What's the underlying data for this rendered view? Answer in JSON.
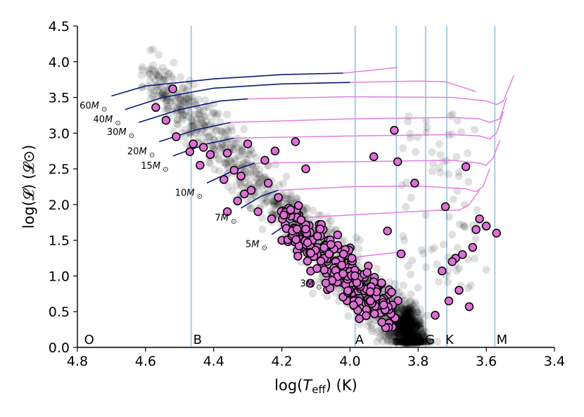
{
  "chart_data": {
    "type": "scatter",
    "title": "",
    "xlabel": "log(T_eff) (K)",
    "xlabel_parts": {
      "pre": "log(",
      "var": "T",
      "sub": "eff",
      "post": ") (K)"
    },
    "ylabel": "log(𝓛) (𝓛⊙)",
    "xlim": [
      4.8,
      3.4
    ],
    "ylim": [
      0.0,
      4.5
    ],
    "x_ticks": [
      4.8,
      4.6,
      4.4,
      4.2,
      4.0,
      3.8,
      3.6,
      3.4
    ],
    "x_tick_labels": [
      "4.8",
      "4.6",
      "4.4",
      "4.2",
      "4.0",
      "3.8",
      "3.6",
      "3.4"
    ],
    "y_ticks": [
      0.0,
      0.5,
      1.0,
      1.5,
      2.0,
      2.5,
      3.0,
      3.5,
      4.0,
      4.5
    ],
    "y_tick_labels": [
      "0.0",
      "0.5",
      "1.0",
      "1.5",
      "2.0",
      "2.5",
      "3.0",
      "3.5",
      "4.0",
      "4.5"
    ],
    "grid": false,
    "spectral_classes": [
      {
        "label": "O",
        "x": 4.78
      },
      {
        "label": "B",
        "x": 4.46
      },
      {
        "label": "A",
        "x": 3.985
      },
      {
        "label": "G",
        "x": 3.78
      },
      {
        "label": "K",
        "x": 3.72
      },
      {
        "label": "M",
        "x": 3.57
      }
    ],
    "class_boundaries": [
      4.466,
      3.985,
      3.864,
      3.778,
      3.716,
      3.575
    ],
    "tracks": [
      {
        "mass": "60",
        "x": [
          4.7,
          4.6,
          4.4,
          4.2,
          4.02
        ],
        "y": [
          3.52,
          3.66,
          3.76,
          3.82,
          3.84
        ],
        "x_post": [
          4.02,
          3.94,
          3.86
        ],
        "y_post": [
          3.84,
          3.88,
          3.92
        ]
      },
      {
        "mass": "40",
        "x": [
          4.66,
          4.55,
          4.4,
          4.2,
          4.0
        ],
        "y": [
          3.33,
          3.5,
          3.63,
          3.69,
          3.71
        ],
        "x_post": [
          4.0,
          3.8,
          3.72,
          3.68,
          3.63
        ],
        "y_post": [
          3.71,
          3.73,
          3.72,
          3.66,
          3.58
        ]
      },
      {
        "mass": "30",
        "x": [
          4.62,
          4.5,
          4.38,
          4.3
        ],
        "y": [
          3.15,
          3.33,
          3.45,
          3.48
        ],
        "x_post": [
          4.3,
          4.0,
          3.7,
          3.6,
          3.57,
          3.55,
          3.52
        ],
        "y_post": [
          3.48,
          3.51,
          3.5,
          3.45,
          3.4,
          3.45,
          3.8
        ]
      },
      {
        "mass": "20",
        "x": [
          4.56,
          4.45,
          4.35
        ],
        "y": [
          2.88,
          3.05,
          3.15
        ],
        "x_post": [
          4.35,
          4.0,
          3.7,
          3.62,
          3.59,
          3.56,
          3.54
        ],
        "y_post": [
          3.15,
          3.2,
          3.22,
          3.2,
          3.15,
          3.2,
          3.5
        ]
      },
      {
        "mass": "15",
        "x": [
          4.52,
          4.42,
          4.34
        ],
        "y": [
          2.68,
          2.85,
          2.93
        ],
        "x_post": [
          4.34,
          4.0,
          3.7,
          3.62,
          3.59,
          3.57,
          3.55
        ],
        "y_post": [
          2.93,
          2.96,
          2.98,
          2.96,
          2.92,
          3.0,
          3.3
        ]
      },
      {
        "mass": "10",
        "x": [
          4.42,
          4.34,
          4.28
        ],
        "y": [
          2.3,
          2.48,
          2.58
        ],
        "x_post": [
          4.28,
          4.0,
          3.7,
          3.62,
          3.6,
          3.58,
          3.56
        ],
        "y_post": [
          2.58,
          2.6,
          2.62,
          2.58,
          2.55,
          2.65,
          2.9
        ]
      },
      {
        "mass": "7",
        "x": [
          4.32,
          4.26,
          4.21
        ],
        "y": [
          1.95,
          2.12,
          2.2
        ],
        "x_post": [
          4.21,
          4.0,
          3.8,
          3.66,
          3.63,
          3.61,
          3.59
        ],
        "y_post": [
          2.2,
          2.25,
          2.26,
          2.22,
          2.18,
          2.25,
          2.5
        ]
      },
      {
        "mass": "5",
        "x": [
          4.23,
          4.18,
          4.13
        ],
        "y": [
          1.58,
          1.74,
          1.82
        ],
        "x_post": [
          4.13,
          3.9,
          3.74,
          3.68,
          3.65,
          3.62
        ],
        "y_post": [
          1.82,
          1.88,
          1.92,
          1.92,
          2.0,
          2.2
        ]
      },
      {
        "mass": "3",
        "x": [
          4.07,
          4.03,
          3.99
        ],
        "y": [
          1.03,
          1.2,
          1.26
        ],
        "x_post": [
          3.99,
          3.92,
          3.86
        ],
        "y_post": [
          1.26,
          1.3,
          1.33
        ]
      }
    ],
    "highlighted_stars": {
      "x": [
        4.52,
        4.57,
        4.54,
        4.51,
        4.46,
        4.43,
        4.41,
        4.47,
        4.44,
        4.36,
        4.34,
        4.32,
        4.37,
        4.31,
        4.29,
        4.33,
        4.36,
        4.24,
        4.21,
        4.27,
        4.23,
        4.19,
        4.15,
        4.18,
        4.12,
        4.09,
        4.2,
        4.14,
        4.1,
        4.06,
        4.03,
        4.3,
        4.25,
        4.22,
        4.16,
        4.13,
        3.93,
        3.87,
        3.86,
        3.81,
        3.89,
        3.72,
        3.66,
        3.69,
        3.63,
        3.62,
        3.6,
        3.64,
        3.67,
        3.7,
        3.73,
        3.75,
        3.57,
        3.65,
        3.68,
        3.71,
        4.0,
        3.97,
        3.95,
        3.92,
        3.9,
        3.85
      ],
      "y": [
        3.62,
        3.36,
        3.18,
        2.95,
        2.85,
        2.8,
        2.7,
        2.74,
        2.55,
        2.72,
        2.48,
        2.4,
        2.35,
        2.15,
        2.2,
        2.05,
        1.9,
        2.3,
        2.1,
        1.9,
        1.8,
        1.72,
        1.85,
        1.95,
        1.63,
        1.72,
        1.5,
        1.42,
        1.33,
        1.45,
        1.38,
        2.85,
        2.62,
        2.75,
        2.88,
        2.5,
        2.67,
        3.04,
        2.6,
        2.3,
        1.63,
        1.97,
        2.53,
        1.25,
        1.65,
        1.8,
        1.7,
        1.4,
        1.3,
        1.2,
        1.07,
        0.45,
        1.6,
        0.57,
        0.8,
        0.65,
        1.0,
        0.9,
        0.7,
        0.8,
        0.6,
        1.31
      ]
    },
    "cluster_stars_note": "dense cloud of ~2000 faint grey stars along main sequence, peaking near log T_eff ≈ 3.84, log L ≈ 0.3"
  }
}
